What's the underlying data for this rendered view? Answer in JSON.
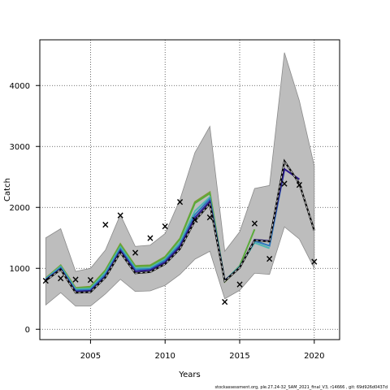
{
  "chart_data": {
    "type": "line",
    "xlabel": "Years",
    "ylabel": "Catch",
    "xlim": [
      2001.6,
      2021.7
    ],
    "ylim": [
      -170,
      4750
    ],
    "xticks": [
      2005,
      2010,
      2015,
      2020
    ],
    "yticks": [
      0,
      1000,
      2000,
      3000,
      4000
    ],
    "grid": true,
    "band": {
      "x": [
        2002,
        2003,
        2004,
        2005,
        2006,
        2007,
        2008,
        2009,
        2010,
        2011,
        2012,
        2013,
        2014,
        2015,
        2016,
        2017,
        2018,
        2019,
        2020
      ],
      "upper": [
        1500,
        1650,
        950,
        1000,
        1300,
        1880,
        1360,
        1380,
        1570,
        2130,
        2900,
        3330,
        1280,
        1600,
        2310,
        2360,
        4540,
        3750,
        2680
      ],
      "lower": [
        400,
        600,
        380,
        380,
        580,
        820,
        620,
        630,
        720,
        900,
        1150,
        1280,
        500,
        640,
        920,
        900,
        1680,
        1480,
        1000
      ]
    },
    "series": [
      {
        "color": "#0b0b0b",
        "dashed": true,
        "x": [
          2002,
          2003,
          2004,
          2005,
          2006,
          2007,
          2008,
          2009,
          2010,
          2011,
          2012,
          2013,
          2014,
          2015,
          2016,
          2017,
          2018,
          2019,
          2020
        ],
        "y": [
          800,
          980,
          600,
          610,
          850,
          1260,
          920,
          940,
          1070,
          1320,
          1780,
          2060,
          790,
          1010,
          1460,
          1440,
          2760,
          2390,
          1620
        ]
      },
      {
        "color": "#2f1a8e",
        "x": [
          2002,
          2003,
          2004,
          2005,
          2006,
          2007,
          2008,
          2009,
          2010,
          2011,
          2012,
          2013,
          2014,
          2015,
          2016,
          2017,
          2018,
          2019
        ],
        "y": [
          810,
          990,
          620,
          630,
          870,
          1290,
          950,
          970,
          1100,
          1360,
          1830,
          2100,
          800,
          1010,
          1470,
          1450,
          2630,
          2460
        ]
      },
      {
        "color": "#2d7bbf",
        "x": [
          2002,
          2003,
          2004,
          2005,
          2006,
          2007,
          2008,
          2009,
          2010,
          2011,
          2012,
          2013,
          2014,
          2015,
          2016,
          2017,
          2018
        ],
        "y": [
          820,
          1010,
          640,
          650,
          900,
          1320,
          980,
          990,
          1130,
          1390,
          1880,
          2140,
          790,
          1020,
          1450,
          1370,
          2620
        ]
      },
      {
        "color": "#4fb6b0",
        "x": [
          2002,
          2003,
          2004,
          2005,
          2006,
          2007,
          2008,
          2009,
          2010,
          2011,
          2012,
          2013,
          2014,
          2015,
          2016,
          2017
        ],
        "y": [
          830,
          1030,
          660,
          670,
          930,
          1350,
          1000,
          1010,
          1150,
          1430,
          1940,
          2170,
          800,
          1030,
          1420,
          1330
        ]
      },
      {
        "color": "#5aab3a",
        "x": [
          2002,
          2003,
          2004,
          2005,
          2006,
          2007,
          2008,
          2009,
          2010,
          2011,
          2012,
          2013,
          2014,
          2015,
          2016
        ],
        "y": [
          830,
          1040,
          670,
          690,
          960,
          1380,
          1030,
          1040,
          1180,
          1480,
          2070,
          2230,
          790,
          1040,
          1640
        ]
      },
      {
        "color": "#7f9b36",
        "x": [
          2002,
          2003,
          2004,
          2005,
          2006,
          2007,
          2008,
          2009,
          2010,
          2011,
          2012,
          2013,
          2014,
          2015
        ],
        "y": [
          840,
          1050,
          680,
          700,
          970,
          1400,
          1040,
          1050,
          1190,
          1490,
          2090,
          2250,
          780,
          1020
        ]
      }
    ],
    "observed": {
      "marker": "×",
      "x": [
        2002,
        2003,
        2004,
        2005,
        2006,
        2007,
        2008,
        2009,
        2010,
        2011,
        2012,
        2013,
        2014,
        2015,
        2016,
        2017,
        2018,
        2019,
        2020
      ],
      "y": [
        800,
        840,
        820,
        810,
        1720,
        1870,
        1260,
        1500,
        1690,
        2090,
        1800,
        1840,
        450,
        740,
        1740,
        1160,
        2390,
        2370,
        1110
      ]
    }
  },
  "footer": "stockassessment.org, ple.27.24-32_SAM_2021_final_V3, r14666 , git: 69d926d0437d"
}
